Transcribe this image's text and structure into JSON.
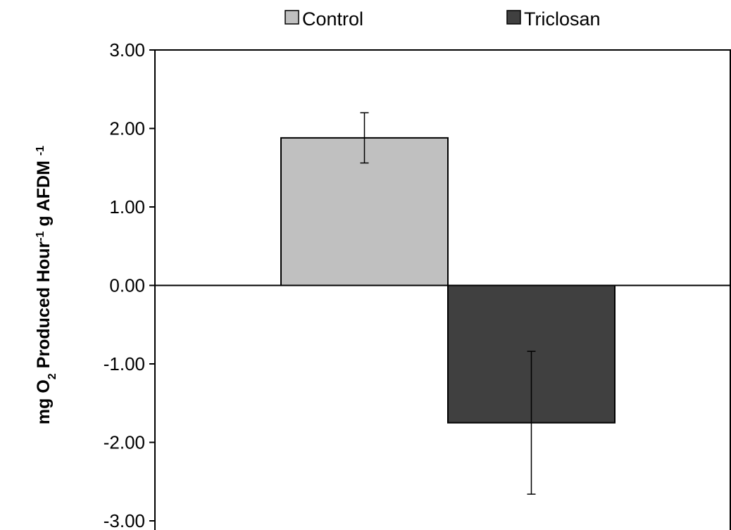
{
  "chart_data": {
    "type": "bar",
    "categories": [
      ""
    ],
    "series": [
      {
        "name": "Control",
        "values": [
          1.88
        ],
        "error": [
          0.32
        ],
        "color": "#c0c0c0"
      },
      {
        "name": "Triclosan",
        "values": [
          -1.75
        ],
        "error": [
          0.91
        ],
        "color": "#404040"
      }
    ],
    "ylim": [
      -3.0,
      3.0
    ],
    "yticks": [
      3.0,
      2.0,
      1.0,
      0.0,
      -1.0,
      -2.0,
      -3.0
    ],
    "ytick_labels": [
      "3.00",
      "2.00",
      "1.00",
      "0.00",
      "-1.00",
      "-2.00",
      "-3.00"
    ],
    "ylabel": {
      "t1": "mg O",
      "t1_sub": "2",
      "t2": " Produced Hour",
      "t2_sup": "-1",
      "t3": " g AFDM ",
      "t3_sup": "-1"
    },
    "xlabel": "",
    "title": "",
    "legend": {
      "position": "top"
    },
    "grid": false
  }
}
